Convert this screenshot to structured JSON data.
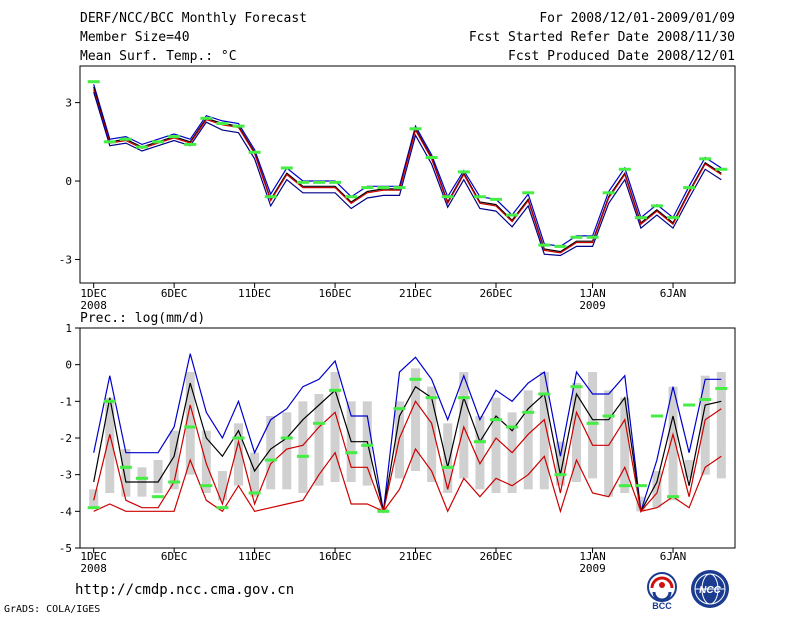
{
  "header": {
    "left": [
      "DERF/NCC/BCC Monthly Forecast",
      "Member Size=40",
      "Mean Surf. Temp.: °C"
    ],
    "right": [
      "For 2008/12/01-2009/01/09",
      "Fcst Started Refer Date 2008/11/30",
      "Fcst Produced Date 2008/12/01"
    ]
  },
  "footer": {
    "url": "http://cmdp.ncc.cma.gov.cn",
    "credit": "GrADS: COLA/IGES",
    "logo_bcc": "BCC",
    "logo_ncc": "NCC"
  },
  "chart_data": [
    {
      "type": "line",
      "title": "Mean Surf. Temp.: °C",
      "ylabel": "°C",
      "ylim": [
        -3.9,
        4.4
      ],
      "yticks": [
        3,
        0,
        -3
      ],
      "x": [
        1,
        2,
        3,
        4,
        5,
        6,
        7,
        8,
        9,
        10,
        11,
        12,
        13,
        14,
        15,
        16,
        17,
        18,
        19,
        20,
        21,
        22,
        23,
        24,
        25,
        26,
        27,
        28,
        29,
        30,
        31,
        32,
        33,
        34,
        35,
        36,
        37,
        38,
        39,
        40
      ],
      "xticks": [
        {
          "x": 1,
          "label": "1DEC",
          "sub": "2008"
        },
        {
          "x": 6,
          "label": "6DEC",
          "sub": ""
        },
        {
          "x": 11,
          "label": "11DEC",
          "sub": ""
        },
        {
          "x": 16,
          "label": "16DEC",
          "sub": ""
        },
        {
          "x": 21,
          "label": "21DEC",
          "sub": ""
        },
        {
          "x": 26,
          "label": "26DEC",
          "sub": ""
        },
        {
          "x": 32,
          "label": "1JAN",
          "sub": "2009"
        },
        {
          "x": 37,
          "label": "6JAN",
          "sub": ""
        }
      ],
      "series": [
        {
          "name": "upper",
          "color": "#0000cc",
          "values": [
            3.7,
            1.6,
            1.7,
            1.4,
            1.6,
            1.8,
            1.6,
            2.5,
            2.3,
            2.2,
            1.2,
            -0.5,
            0.5,
            0.0,
            0.0,
            0.0,
            -0.6,
            -0.2,
            -0.2,
            -0.2,
            2.1,
            1.0,
            -0.6,
            0.4,
            -0.6,
            -0.7,
            -1.3,
            -0.5,
            -2.4,
            -2.5,
            -2.1,
            -2.1,
            -0.4,
            0.5,
            -1.4,
            -0.9,
            -1.4,
            -0.2,
            0.9,
            0.5
          ]
        },
        {
          "name": "ensemble mean",
          "color": "#000000",
          "values": [
            3.6,
            1.5,
            1.6,
            1.3,
            1.5,
            1.7,
            1.5,
            2.4,
            2.2,
            2.1,
            1.1,
            -0.7,
            0.3,
            -0.2,
            -0.2,
            -0.2,
            -0.8,
            -0.4,
            -0.3,
            -0.3,
            2.0,
            0.9,
            -0.8,
            0.3,
            -0.8,
            -0.9,
            -1.5,
            -0.7,
            -2.6,
            -2.7,
            -2.3,
            -2.3,
            -0.6,
            0.3,
            -1.6,
            -1.1,
            -1.6,
            -0.4,
            0.7,
            0.3
          ]
        },
        {
          "name": "member",
          "color": "#cc0000",
          "values": [
            3.5,
            1.45,
            1.55,
            1.25,
            1.45,
            1.65,
            1.45,
            2.35,
            2.15,
            2.05,
            1.05,
            -0.75,
            0.25,
            -0.25,
            -0.25,
            -0.25,
            -0.85,
            -0.45,
            -0.35,
            -0.35,
            1.95,
            0.85,
            -0.85,
            0.25,
            -0.85,
            -0.95,
            -1.55,
            -0.75,
            -2.65,
            -2.75,
            -2.35,
            -2.35,
            -0.65,
            0.25,
            -1.65,
            -1.15,
            -1.65,
            -0.45,
            0.65,
            0.25
          ]
        },
        {
          "name": "lower",
          "color": "#000088",
          "values": [
            3.4,
            1.35,
            1.45,
            1.15,
            1.35,
            1.55,
            1.35,
            2.25,
            1.95,
            1.85,
            0.85,
            -0.95,
            0.05,
            -0.45,
            -0.45,
            -0.45,
            -1.05,
            -0.65,
            -0.55,
            -0.55,
            1.75,
            0.65,
            -1.0,
            0.05,
            -1.05,
            -1.15,
            -1.75,
            -0.95,
            -2.8,
            -2.85,
            -2.5,
            -2.5,
            -0.85,
            0.05,
            -1.8,
            -1.3,
            -1.8,
            -0.65,
            0.45,
            0.05
          ]
        }
      ],
      "markers": {
        "name": "observed",
        "color": "#44ee44",
        "values": [
          3.8,
          1.5,
          1.6,
          1.3,
          1.5,
          1.7,
          1.4,
          2.4,
          2.2,
          2.1,
          1.1,
          -0.6,
          0.5,
          -0.05,
          -0.05,
          -0.05,
          -0.6,
          -0.25,
          -0.25,
          -0.25,
          2.0,
          0.9,
          -0.6,
          0.35,
          -0.6,
          -0.7,
          -1.3,
          -0.45,
          -2.45,
          -2.5,
          -2.15,
          -2.15,
          -0.45,
          0.45,
          -1.4,
          -0.95,
          -1.4,
          -0.25,
          0.85,
          0.45
        ]
      }
    },
    {
      "type": "line",
      "title": "Prec.: log(mm/d)",
      "ylabel": "log(mm/d)",
      "ylim": [
        -5,
        1
      ],
      "yticks": [
        1,
        0,
        -1,
        -2,
        -3,
        -4,
        -5
      ],
      "x": [
        1,
        2,
        3,
        4,
        5,
        6,
        7,
        8,
        9,
        10,
        11,
        12,
        13,
        14,
        15,
        16,
        17,
        18,
        19,
        20,
        21,
        22,
        23,
        24,
        25,
        26,
        27,
        28,
        29,
        30,
        31,
        32,
        33,
        34,
        35,
        36,
        37,
        38,
        39,
        40
      ],
      "xticks": [
        {
          "x": 1,
          "label": "1DEC",
          "sub": "2008"
        },
        {
          "x": 6,
          "label": "6DEC",
          "sub": ""
        },
        {
          "x": 11,
          "label": "11DEC",
          "sub": ""
        },
        {
          "x": 16,
          "label": "16DEC",
          "sub": ""
        },
        {
          "x": 21,
          "label": "21DEC",
          "sub": ""
        },
        {
          "x": 26,
          "label": "26DEC",
          "sub": ""
        },
        {
          "x": 32,
          "label": "1JAN",
          "sub": "2009"
        },
        {
          "x": 37,
          "label": "6JAN",
          "sub": ""
        }
      ],
      "bars": {
        "name": "ensemble spread",
        "color": "#d0d0d0",
        "low": [
          -3.9,
          -3.5,
          -3.6,
          -3.6,
          -3.5,
          -3.4,
          -3.0,
          -3.5,
          -3.7,
          -3.3,
          -3.6,
          -3.4,
          -3.4,
          -3.5,
          -3.3,
          -3.2,
          -3.2,
          -3.3,
          -4.0,
          -3.1,
          -2.9,
          -3.2,
          -3.5,
          -3.1,
          -3.4,
          -3.5,
          -3.5,
          -3.4,
          -3.4,
          -3.3,
          -3.2,
          -3.1,
          -3.6,
          -3.5,
          -4.0,
          -3.9,
          -3.7,
          -3.1,
          -3.0,
          -3.1
        ],
        "high": [
          -3.4,
          -0.9,
          -2.3,
          -2.8,
          -2.6,
          -1.8,
          -0.2,
          -1.8,
          -2.9,
          -1.6,
          -2.4,
          -1.4,
          -1.3,
          -1.0,
          -0.8,
          -0.2,
          -1.0,
          -1.0,
          -3.9,
          -1.0,
          -0.1,
          -0.6,
          -1.6,
          -0.2,
          -1.4,
          -0.9,
          -1.3,
          -0.7,
          -0.2,
          -2.1,
          -0.5,
          -0.2,
          -0.7,
          -0.9,
          -3.6,
          -2.9,
          -0.6,
          -2.6,
          -0.3,
          -0.2
        ]
      },
      "series": [
        {
          "name": "max",
          "color": "#0000cc",
          "values": [
            -2.4,
            -0.3,
            -2.4,
            -2.4,
            -2.4,
            -1.7,
            0.3,
            -1.3,
            -2.0,
            -1.0,
            -2.4,
            -1.5,
            -1.2,
            -0.6,
            -0.4,
            0.1,
            -1.4,
            -1.4,
            -4.0,
            -0.2,
            0.2,
            -0.4,
            -1.5,
            -0.3,
            -1.5,
            -0.7,
            -1.0,
            -0.5,
            -0.2,
            -2.5,
            -0.2,
            -0.8,
            -0.8,
            -0.3,
            -4.0,
            -2.6,
            -0.6,
            -2.4,
            -0.4,
            -0.4
          ]
        },
        {
          "name": "mean",
          "color": "#000000",
          "values": [
            -3.2,
            -0.9,
            -3.2,
            -3.2,
            -3.2,
            -2.5,
            -0.5,
            -2.0,
            -2.5,
            -1.8,
            -2.9,
            -2.3,
            -2.0,
            -1.5,
            -1.1,
            -0.7,
            -2.1,
            -2.1,
            -4.0,
            -1.4,
            -0.6,
            -0.9,
            -2.8,
            -0.9,
            -2.1,
            -1.4,
            -1.8,
            -1.2,
            -0.8,
            -3.0,
            -0.8,
            -1.5,
            -1.5,
            -0.9,
            -4.0,
            -3.2,
            -1.4,
            -3.3,
            -1.1,
            -1.0
          ]
        },
        {
          "name": "upper member",
          "color": "#cc0000",
          "values": [
            -3.7,
            -1.9,
            -3.7,
            -3.9,
            -3.9,
            -3.2,
            -1.1,
            -2.7,
            -3.8,
            -2.1,
            -3.8,
            -2.7,
            -2.3,
            -2.2,
            -1.7,
            -1.3,
            -2.8,
            -2.8,
            -4.0,
            -2.0,
            -1.0,
            -1.6,
            -3.4,
            -1.7,
            -2.7,
            -2.0,
            -2.4,
            -1.9,
            -1.5,
            -3.5,
            -1.3,
            -2.2,
            -2.2,
            -1.5,
            -4.0,
            -3.5,
            -1.9,
            -3.6,
            -1.5,
            -1.2
          ]
        },
        {
          "name": "lower member",
          "color": "#cc0000",
          "values": [
            -4.0,
            -3.8,
            -4.0,
            -4.0,
            -4.0,
            -4.0,
            -2.6,
            -3.7,
            -4.0,
            -3.3,
            -4.0,
            -3.9,
            -3.8,
            -3.7,
            -3.0,
            -2.4,
            -3.8,
            -3.8,
            -4.0,
            -3.4,
            -2.3,
            -2.9,
            -4.0,
            -3.1,
            -3.6,
            -3.1,
            -3.3,
            -3.0,
            -2.5,
            -4.0,
            -2.6,
            -3.5,
            -3.6,
            -2.8,
            -4.0,
            -3.9,
            -3.6,
            -3.9,
            -2.8,
            -2.5
          ]
        }
      ],
      "markers": {
        "name": "observed",
        "color": "#44ee44",
        "values": [
          -3.9,
          -1.0,
          -2.8,
          -3.1,
          -3.6,
          -3.2,
          -1.7,
          -3.3,
          -3.9,
          -2.0,
          -3.5,
          -2.6,
          -2.0,
          -2.5,
          -1.6,
          -0.7,
          -2.4,
          -2.2,
          -4.0,
          -1.2,
          -0.4,
          -0.9,
          -2.8,
          -0.9,
          -2.1,
          -1.5,
          -1.7,
          -1.3,
          -0.8,
          -3.0,
          -0.6,
          -1.6,
          -1.4,
          -3.3,
          -3.3,
          -1.4,
          -3.6,
          -1.1,
          -0.95,
          -0.65
        ]
      }
    }
  ]
}
